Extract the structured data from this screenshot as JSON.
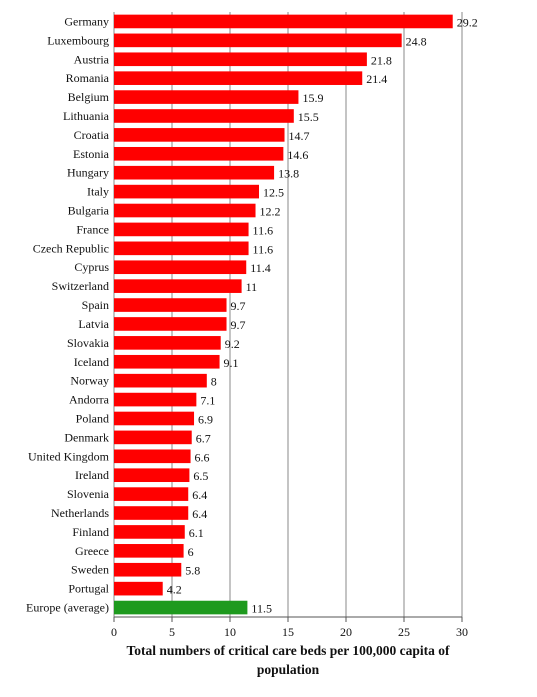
{
  "chart_data": {
    "type": "bar",
    "orientation": "horizontal",
    "categories": [
      "Germany",
      "Luxembourg",
      "Austria",
      "Romania",
      "Belgium",
      "Lithuania",
      "Croatia",
      "Estonia",
      "Hungary",
      "Italy",
      "Bulgaria",
      "France",
      "Czech Republic",
      "Cyprus",
      "Switzerland",
      "Spain",
      "Latvia",
      "Slovakia",
      "Iceland",
      "Norway",
      "Andorra",
      "Poland",
      "Denmark",
      "United Kingdom",
      "Ireland",
      "Slovenia",
      "Netherlands",
      "Finland",
      "Greece",
      "Sweden",
      "Portugal",
      "Europe (average)"
    ],
    "values": [
      29.2,
      24.8,
      21.8,
      21.4,
      15.9,
      15.5,
      14.7,
      14.6,
      13.8,
      12.5,
      12.2,
      11.6,
      11.6,
      11.4,
      11,
      9.7,
      9.7,
      9.2,
      9.1,
      8,
      7.1,
      6.9,
      6.7,
      6.6,
      6.5,
      6.4,
      6.4,
      6.1,
      6,
      5.8,
      4.2,
      11.5
    ],
    "value_labels": [
      "29.2",
      "24.8",
      "21.8",
      "21.4",
      "15.9",
      "15.5",
      "14.7",
      "14.6",
      "13.8",
      "12.5",
      "12.2",
      "11.6",
      "11.6",
      "11.4",
      "11",
      "9.7",
      "9.7",
      "9.2",
      "9.1",
      "8",
      "7.1",
      "6.9",
      "6.7",
      "6.6",
      "6.5",
      "6.4",
      "6.4",
      "6.1",
      "6",
      "5.8",
      "4.2",
      "11.5"
    ],
    "xlabel_lines": [
      "Total numbers of critical care beds per 100,000 capita of",
      "population"
    ],
    "xlim": [
      0,
      30
    ],
    "xticks": [
      0,
      5,
      10,
      15,
      20,
      25,
      30
    ],
    "xtick_labels": [
      "0",
      "5",
      "10",
      "15",
      "20",
      "25",
      "30"
    ],
    "grid": "vertical",
    "legend": "none",
    "colors": {
      "bar": "#ff0000",
      "highlight": "#1e9a1e",
      "grid": "#888888"
    },
    "highlight_index": 31
  }
}
